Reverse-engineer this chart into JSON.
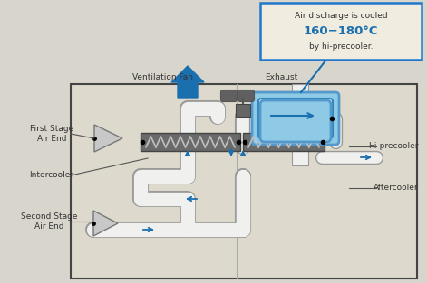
{
  "bg_color": "#e0ddd4",
  "outer_bg": "#d8d5cc",
  "box_bg": "#ddd9cc",
  "blue": "#1a6faf",
  "light_blue": "#8ecae6",
  "blue_arrow": "#1a6faf",
  "gray_dark": "#4a4a4a",
  "gray_cooler": "#6a6a6a",
  "pipe_white": "#f0f0ee",
  "pipe_edge": "#999999",
  "tooltip_bg": "#f0ece0",
  "tooltip_border": "#2277cc",
  "text1": "Air discharge is cooled",
  "text2": "160−180°C",
  "text3": "by hi-precooler.",
  "lbl_vent": "Ventilation Fan",
  "lbl_exhaust": "Exhaust",
  "lbl_first": "First Stage\nAir End",
  "lbl_second": "Second Stage\nAir End",
  "lbl_intercooler": "Intercooler",
  "lbl_hipre": "Hi-precooler",
  "lbl_after": "Aftercooler"
}
